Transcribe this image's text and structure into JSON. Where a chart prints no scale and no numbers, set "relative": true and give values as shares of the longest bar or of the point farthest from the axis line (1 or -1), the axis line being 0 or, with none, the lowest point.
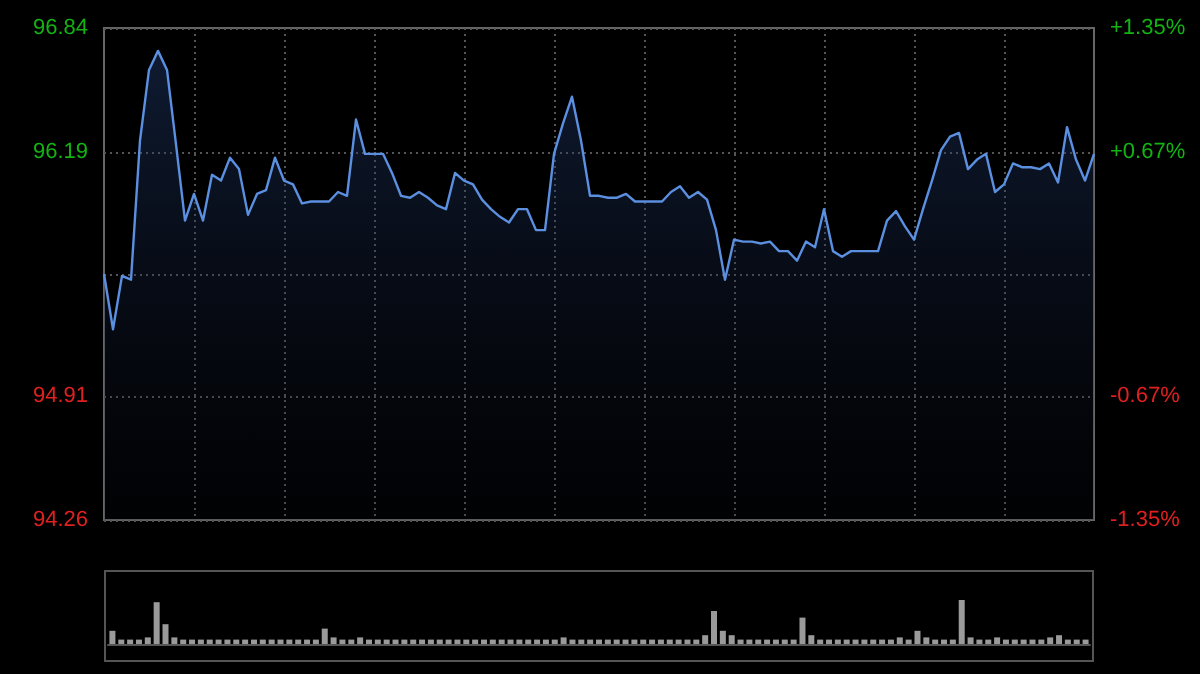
{
  "chart_data": [
    {
      "type": "area",
      "categories": [
        null,
        null,
        null,
        null,
        null,
        null,
        null,
        null,
        null,
        null,
        null,
        null,
        null,
        null,
        null,
        null,
        null,
        null,
        null,
        null,
        null,
        null,
        null,
        null,
        null,
        null,
        null,
        null,
        null,
        null,
        null,
        null,
        null,
        null,
        null,
        null,
        null,
        null,
        null,
        null,
        null,
        null,
        null,
        null,
        null,
        null,
        null,
        null,
        null,
        null,
        null,
        null,
        null,
        null,
        null,
        null,
        null,
        null,
        null,
        null,
        null,
        null,
        null,
        null,
        null,
        null,
        null,
        null,
        null,
        null,
        null,
        null,
        null,
        null,
        null,
        null,
        null,
        null,
        null,
        null,
        null,
        null,
        null,
        null,
        null,
        null,
        null,
        null,
        null,
        null,
        null,
        null,
        null,
        null,
        null,
        null,
        null,
        null,
        null,
        null,
        null,
        null,
        null,
        null,
        null,
        null,
        null,
        null,
        null,
        null,
        null
      ],
      "series": [
        {
          "color": "#5b8fe0",
          "values": [
            95.55,
            95.26,
            95.54,
            95.52,
            96.25,
            96.62,
            96.72,
            96.62,
            96.23,
            95.83,
            95.97,
            95.83,
            96.07,
            96.04,
            96.16,
            96.1,
            95.86,
            95.97,
            95.99,
            96.16,
            96.04,
            96.02,
            95.92,
            95.93,
            95.93,
            95.93,
            95.98,
            95.96,
            96.36,
            96.18,
            96.18,
            96.18,
            96.08,
            95.96,
            95.95,
            95.98,
            95.95,
            95.91,
            95.89,
            96.08,
            96.04,
            96.02,
            95.94,
            95.89,
            95.85,
            95.82,
            95.89,
            95.89,
            95.78,
            95.78,
            96.18,
            96.34,
            96.48,
            96.25,
            95.96,
            95.96,
            95.95,
            95.95,
            95.97,
            95.93,
            95.93,
            95.93,
            95.93,
            95.98,
            96.01,
            95.95,
            95.98,
            95.94,
            95.78,
            95.52,
            95.73,
            95.72,
            95.72,
            95.71,
            95.72,
            95.67,
            95.67,
            95.62,
            95.72,
            95.69,
            95.89,
            95.67,
            95.64,
            95.67,
            95.67,
            95.67,
            95.67,
            95.83,
            95.88,
            95.8,
            95.73,
            95.89,
            96.04,
            96.2,
            96.27,
            96.29,
            96.1,
            96.15,
            96.18,
            95.98,
            96.02,
            96.13,
            96.11,
            96.11,
            96.1,
            96.13,
            96.03,
            96.32,
            96.15,
            96.04,
            96.18
          ]
        }
      ],
      "ylim": [
        94.26,
        96.84
      ],
      "yticks": [
        94.26,
        94.91,
        {
          "value": 95.55,
          "label": null
        },
        96.19,
        96.84
      ],
      "y2lim": [
        -1.35,
        1.35
      ],
      "y2ticks": [
        {
          "value": -1.35,
          "label": "-1.35%"
        },
        {
          "value": -0.67,
          "label": "-0.67%"
        },
        {
          "value": 0,
          "label": null
        },
        {
          "value": 0.67,
          "label": "+0.67%"
        },
        {
          "value": 1.35,
          "label": "+1.35%"
        }
      ],
      "grid": true,
      "marker": "none"
    },
    {
      "type": "bar",
      "relative": true,
      "categories": [
        null,
        null,
        null,
        null,
        null,
        null,
        null,
        null,
        null,
        null,
        null,
        null,
        null,
        null,
        null,
        null,
        null,
        null,
        null,
        null,
        null,
        null,
        null,
        null,
        null,
        null,
        null,
        null,
        null,
        null,
        null,
        null,
        null,
        null,
        null,
        null,
        null,
        null,
        null,
        null,
        null,
        null,
        null,
        null,
        null,
        null,
        null,
        null,
        null,
        null,
        null,
        null,
        null,
        null,
        null,
        null,
        null,
        null,
        null,
        null,
        null,
        null,
        null,
        null,
        null,
        null,
        null,
        null,
        null,
        null,
        null,
        null,
        null,
        null,
        null,
        null,
        null,
        null,
        null,
        null,
        null,
        null,
        null,
        null,
        null,
        null,
        null,
        null,
        null,
        null,
        null,
        null,
        null,
        null,
        null,
        null,
        null,
        null,
        null,
        null,
        null,
        null,
        null,
        null,
        null,
        null,
        null,
        null,
        null,
        null,
        null
      ],
      "series": [
        {
          "color": "#9a9a9a",
          "values": [
            0.3,
            0.1,
            0.1,
            0.1,
            0.15,
            0.95,
            0.45,
            0.15,
            0.1,
            0.1,
            0.1,
            0.1,
            0.1,
            0.1,
            0.1,
            0.1,
            0.1,
            0.1,
            0.1,
            0.1,
            0.1,
            0.1,
            0.1,
            0.1,
            0.35,
            0.15,
            0.1,
            0.1,
            0.15,
            0.1,
            0.1,
            0.1,
            0.1,
            0.1,
            0.1,
            0.1,
            0.1,
            0.1,
            0.1,
            0.1,
            0.1,
            0.1,
            0.1,
            0.1,
            0.1,
            0.1,
            0.1,
            0.1,
            0.1,
            0.1,
            0.1,
            0.15,
            0.1,
            0.1,
            0.1,
            0.1,
            0.1,
            0.1,
            0.1,
            0.1,
            0.1,
            0.1,
            0.1,
            0.1,
            0.1,
            0.1,
            0.1,
            0.2,
            0.75,
            0.3,
            0.2,
            0.1,
            0.1,
            0.1,
            0.1,
            0.1,
            0.1,
            0.1,
            0.6,
            0.2,
            0.1,
            0.1,
            0.1,
            0.1,
            0.1,
            0.1,
            0.1,
            0.1,
            0.1,
            0.15,
            0.1,
            0.3,
            0.15,
            0.1,
            0.1,
            0.1,
            1,
            0.15,
            0.1,
            0.1,
            0.15,
            0.1,
            0.1,
            0.1,
            0.1,
            0.1,
            0.15,
            0.2,
            0.1,
            0.1,
            0.1
          ]
        }
      ]
    }
  ]
}
